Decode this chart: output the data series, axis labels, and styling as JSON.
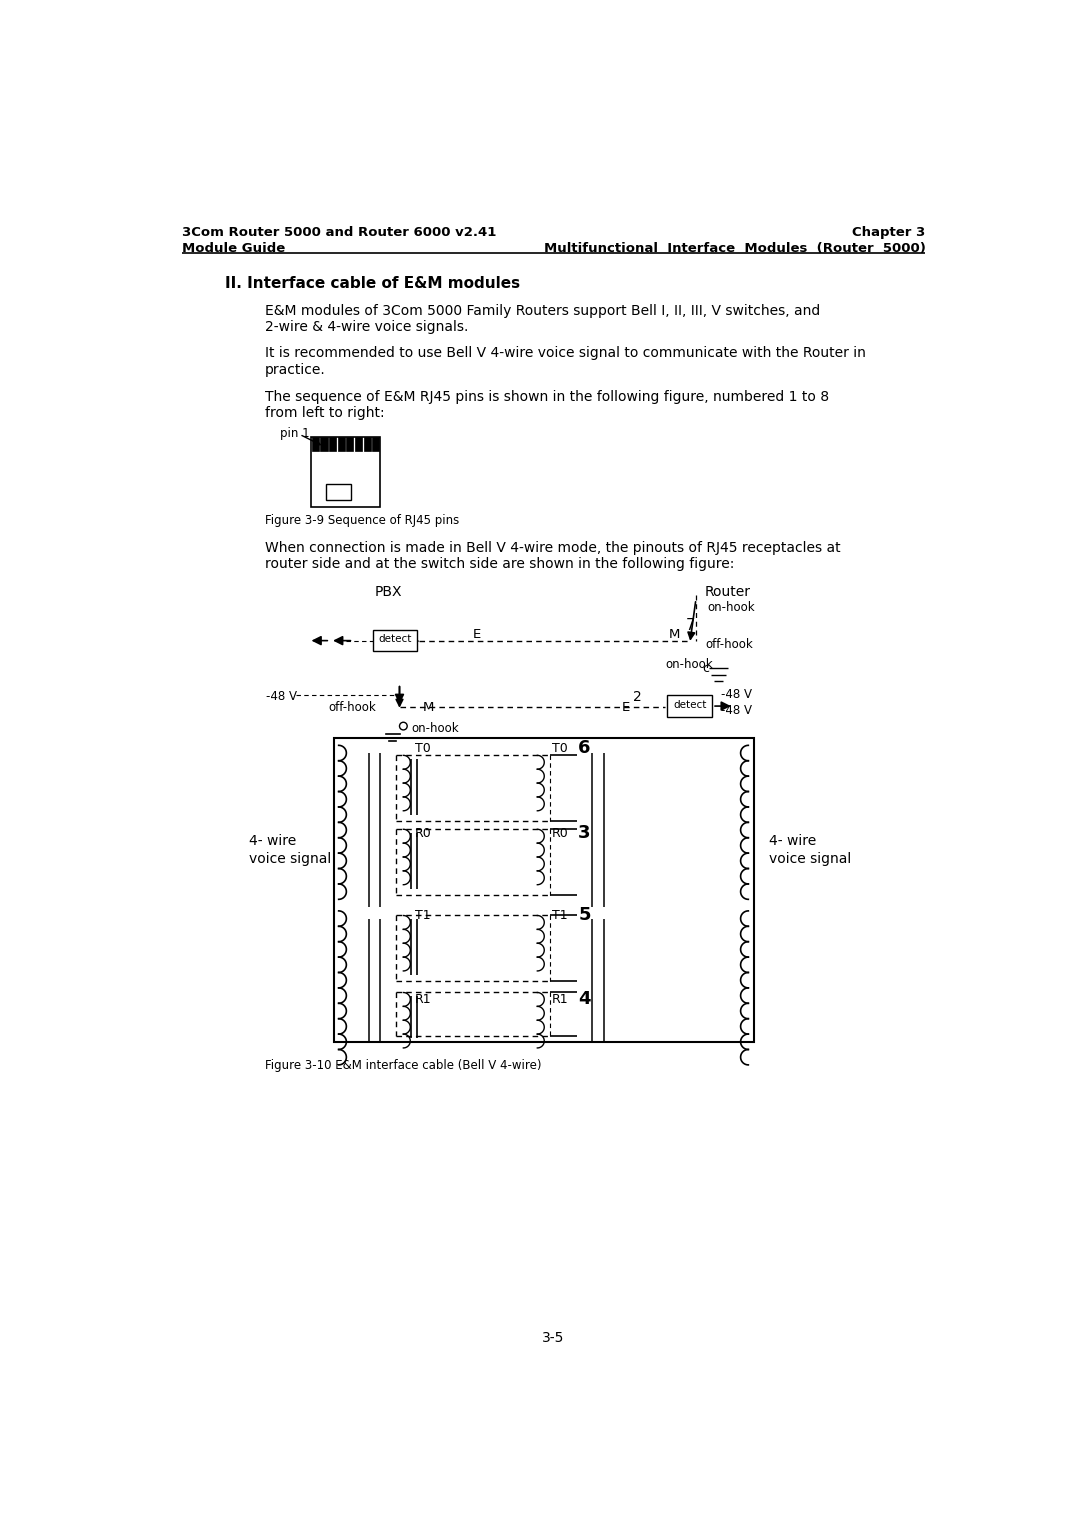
{
  "header_left_line1": "3Com Router 5000 and Router 6000 v2.41",
  "header_left_line2": "Module Guide",
  "header_right_line1": "Chapter 3",
  "header_right_line2": "Multifunctional  Interface  Modules  (Router  5000)",
  "section_title": "II. Interface cable of E&M modules",
  "para1_l1": "E&M modules of 3Com 5000 Family Routers support Bell I, II, III, V switches, and",
  "para1_l2": "2-wire & 4-wire voice signals.",
  "para2_l1": "It is recommended to use Bell V 4-wire voice signal to communicate with the Router in",
  "para2_l2": "practice.",
  "para3_l1": "The sequence of E&M RJ45 pins is shown in the following figure, numbered 1 to 8",
  "para3_l2": "from left to right:",
  "fig39_caption": "Figure 3-9 Sequence of RJ45 pins",
  "para4_l1": "When connection is made in Bell V 4-wire mode, the pinouts of RJ45 receptacles at",
  "para4_l2": "router side and at the switch side are shown in the following figure:",
  "fig310_caption": "Figure 3-10 E&M interface cable (Bell V 4-wire)",
  "page_number": "3-5",
  "bg_color": "#ffffff",
  "text_color": "#000000"
}
